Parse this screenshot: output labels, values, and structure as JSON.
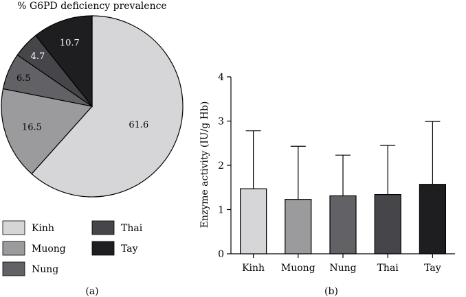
{
  "chart_data": [
    {
      "type": "pie",
      "title": "% G6PD deficiency prevalence",
      "panel_label": "(a)",
      "labels": [
        "Kinh",
        "Muong",
        "Nung",
        "Thai",
        "Tay"
      ],
      "values": [
        61.6,
        16.5,
        6.5,
        4.7,
        10.7
      ],
      "value_labels": [
        "61.6",
        "16.5",
        "6.5",
        "4.7",
        "10.7"
      ],
      "colors": [
        "#d6d6d8",
        "#9b9b9d",
        "#626266",
        "#46464a",
        "#1e1e20"
      ],
      "label_colors": [
        "#000000",
        "#000000",
        "#000000",
        "#ffffff",
        "#ffffff"
      ],
      "legend": {
        "placement": "bottom",
        "entries": [
          {
            "label": "Kinh",
            "color": "#d6d6d8"
          },
          {
            "label": "Thai",
            "color": "#46464a"
          },
          {
            "label": "Muong",
            "color": "#9b9b9d"
          },
          {
            "label": "Tay",
            "color": "#1e1e20"
          },
          {
            "label": "Nung",
            "color": "#626266"
          }
        ]
      }
    },
    {
      "type": "bar",
      "panel_label": "(b)",
      "categories": [
        "Kinh",
        "Muong",
        "Nung",
        "Thai",
        "Tay"
      ],
      "values": [
        1.47,
        1.23,
        1.31,
        1.34,
        1.57
      ],
      "error_upper": [
        2.78,
        2.43,
        2.23,
        2.45,
        2.99
      ],
      "colors": [
        "#d6d6d8",
        "#9b9b9d",
        "#626266",
        "#46464a",
        "#1e1e20"
      ],
      "ylabel": "Enzyme activity (IU/g Hb)",
      "xlabel": "",
      "ylim": [
        0,
        4
      ],
      "yticks": [
        "0",
        "1",
        "2",
        "3",
        "4"
      ],
      "grid": false
    }
  ]
}
